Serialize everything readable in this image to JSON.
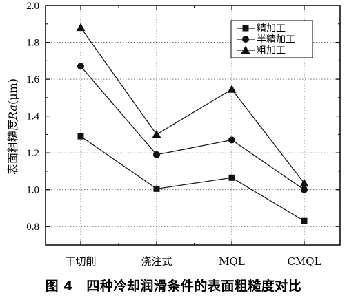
{
  "chart_data": {
    "type": "line",
    "categories": [
      "干切削",
      "浇注式",
      "MQL",
      "CMQL"
    ],
    "series": [
      {
        "name": "精加工",
        "marker": "square",
        "values": [
          1.29,
          1.005,
          1.065,
          0.83
        ]
      },
      {
        "name": "半精加工",
        "marker": "circle",
        "values": [
          1.67,
          1.19,
          1.27,
          1.0
        ]
      },
      {
        "name": "粗加工",
        "marker": "triangle",
        "values": [
          1.88,
          1.3,
          1.545,
          1.035
        ]
      }
    ],
    "ylabel_prefix": "表面粗糙度",
    "ylabel_italic": "Ra",
    "ylabel_unit": "(μm)",
    "ylim": [
      0.8,
      2.0
    ],
    "ymin_plot": 0.7,
    "yticks": [
      "0.8",
      "1.0",
      "1.2",
      "1.4",
      "1.6",
      "1.8",
      "2.0"
    ],
    "grid": true,
    "legend_position": "top-right",
    "colors": {
      "line": "#1a1a1a",
      "grid": "#555555"
    }
  },
  "caption": "图 4　四种冷却润滑条件的表面粗糙度对比"
}
